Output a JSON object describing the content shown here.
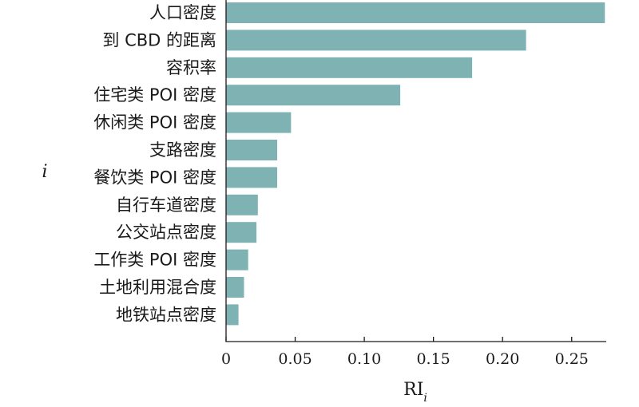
{
  "chart_data": {
    "type": "bar",
    "orientation": "horizontal",
    "title": "",
    "ylabel": "i",
    "xlabel_main": "RI",
    "xlabel_sub": "i",
    "xlim": [
      0,
      0.275
    ],
    "xticks": [
      "0",
      "0.05",
      "0.10",
      "0.15",
      "0.20",
      "0.25"
    ],
    "bar_color": "#7fb3b3",
    "grid": false,
    "categories": [
      "人口密度",
      "到 CBD 的距离",
      "容积率",
      "住宅类 POI 密度",
      "休闲类 POI 密度",
      "支路密度",
      "餐饮类 POI 密度",
      "自行车道密度",
      "公交站点密度",
      "工作类 POI 密度",
      "土地利用混合度",
      "地铁站点密度"
    ],
    "values": [
      0.274,
      0.217,
      0.178,
      0.126,
      0.047,
      0.037,
      0.037,
      0.023,
      0.022,
      0.016,
      0.013,
      0.009
    ]
  }
}
